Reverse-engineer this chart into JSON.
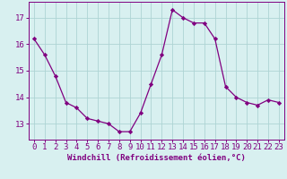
{
  "x": [
    0,
    1,
    2,
    3,
    4,
    5,
    6,
    7,
    8,
    9,
    10,
    11,
    12,
    13,
    14,
    15,
    16,
    17,
    18,
    19,
    20,
    21,
    22,
    23
  ],
  "y": [
    16.2,
    15.6,
    14.8,
    13.8,
    13.6,
    13.2,
    13.1,
    13.0,
    12.7,
    12.7,
    13.4,
    14.5,
    15.6,
    17.3,
    17.0,
    16.8,
    16.8,
    16.2,
    14.4,
    14.0,
    13.8,
    13.7,
    13.9,
    13.8
  ],
  "line_color": "#800080",
  "marker": "D",
  "marker_size": 2.2,
  "bg_color": "#d8f0f0",
  "grid_color": "#aed4d4",
  "xlabel": "Windchill (Refroidissement éolien,°C)",
  "ylim": [
    12.4,
    17.6
  ],
  "xlim": [
    -0.5,
    23.5
  ],
  "xticks": [
    0,
    1,
    2,
    3,
    4,
    5,
    6,
    7,
    8,
    9,
    10,
    11,
    12,
    13,
    14,
    15,
    16,
    17,
    18,
    19,
    20,
    21,
    22,
    23
  ],
  "yticks": [
    13,
    14,
    15,
    16,
    17
  ],
  "xlabel_fontsize": 6.5,
  "tick_fontsize": 6.5,
  "line_color_hex": "#800080"
}
